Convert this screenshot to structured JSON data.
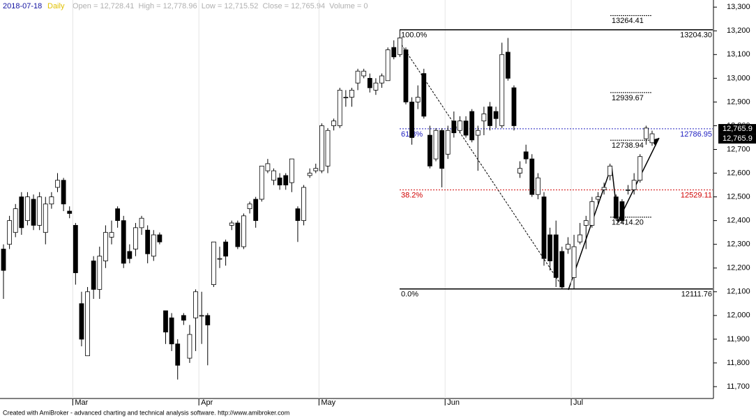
{
  "header": {
    "date": "2018-07-18",
    "interval": "Daily",
    "quote": "Open = 12,728.41  High = 12,778.96  Low = 12,715.52  Close = 12,765.94  Volume = 0"
  },
  "chart_data": {
    "type": "candlestick",
    "categories": [
      null,
      null,
      null,
      null,
      null,
      null,
      null,
      null,
      null,
      null,
      null,
      null,
      "Mar",
      null,
      null,
      null,
      null,
      null,
      null,
      null,
      null,
      null,
      null,
      null,
      null,
      null,
      null,
      null,
      null,
      null,
      null,
      null,
      null,
      "Apr",
      null,
      null,
      null,
      null,
      null,
      null,
      null,
      null,
      null,
      null,
      null,
      null,
      null,
      null,
      null,
      null,
      null,
      null,
      null,
      "May",
      null,
      null,
      null,
      null,
      null,
      null,
      null,
      null,
      null,
      null,
      null,
      null,
      null,
      null,
      null,
      null,
      null,
      null,
      null,
      null,
      "Jun",
      null,
      null,
      null,
      null,
      null,
      null,
      null,
      null,
      null,
      null,
      null,
      null,
      null,
      null,
      null,
      null,
      null,
      null,
      null,
      null,
      "Jul",
      null,
      null,
      null,
      null,
      null,
      null,
      null,
      null,
      null,
      null,
      null,
      null,
      null
    ],
    "open": [
      12280,
      12300,
      12350,
      12500,
      12400,
      12490,
      12380,
      12350,
      12470,
      12540,
      12570,
      12440,
      12380,
      12050,
      11830,
      12230,
      12110,
      12230,
      12330,
      12450,
      12400,
      12270,
      12280,
      12370,
      12360,
      12250,
      12340,
      12020,
      11990,
      11880,
      12000,
      11820,
      11990,
      12000,
      12000,
      12130,
      12240,
      12310,
      12380,
      12390,
      12290,
      12450,
      12490,
      12490,
      12610,
      12570,
      12580,
      12590,
      12560,
      12450,
      12400,
      12590,
      12610,
      12610,
      12630,
      12800,
      12800,
      12920,
      12920,
      12980,
      13010,
      13000,
      12950,
      12980,
      12990,
      13130,
      13100,
      13120,
      12900,
      12900,
      13020,
      12760,
      12660,
      12780,
      12680,
      12820,
      12780,
      12820,
      12860,
      12760,
      12820,
      12880,
      12860,
      12800,
      13110,
      12960,
      12600,
      12690,
      12660,
      12510,
      12500,
      12340,
      12340,
      12270,
      12280,
      12160,
      12310,
      12380,
      12380,
      12490,
      12530,
      12590,
      12500,
      12480,
      12530,
      12530,
      12570,
      12745,
      12728.41
    ],
    "high": [
      12300,
      12420,
      12470,
      12520,
      12520,
      12510,
      12520,
      12500,
      12520,
      12600,
      12580,
      12460,
      12390,
      12100,
      12120,
      12250,
      12290,
      12380,
      12400,
      12460,
      12420,
      12300,
      12390,
      12420,
      12380,
      12360,
      12350,
      12020,
      12010,
      11900,
      12010,
      11960,
      12110,
      12100,
      12010,
      12310,
      12290,
      12320,
      12400,
      12400,
      12430,
      12480,
      12500,
      12630,
      12660,
      12620,
      12600,
      12600,
      12660,
      12460,
      12550,
      12620,
      12640,
      12810,
      12790,
      12830,
      12960,
      12950,
      12960,
      13040,
      13040,
      13020,
      13000,
      13020,
      13130,
      13160,
      13204,
      13130,
      12920,
      12970,
      13040,
      12800,
      12790,
      12790,
      12800,
      12860,
      12840,
      12840,
      12870,
      12800,
      12880,
      12900,
      12880,
      13150,
      13170,
      12970,
      12650,
      12720,
      12680,
      12600,
      12520,
      12370,
      12400,
      12290,
      12330,
      12340,
      12390,
      12420,
      12500,
      12520,
      12560,
      12640,
      12510,
      12490,
      12550,
      12600,
      12680,
      12800,
      12778.96
    ],
    "low": [
      12070,
      12280,
      12330,
      12340,
      12380,
      12360,
      12360,
      12300,
      12450,
      12520,
      12440,
      12410,
      12130,
      11870,
      11830,
      12070,
      12070,
      12200,
      12300,
      12370,
      12200,
      12220,
      12250,
      12340,
      12220,
      12230,
      12300,
      11880,
      11850,
      11730,
      11960,
      11800,
      11850,
      11880,
      11790,
      12120,
      12200,
      12210,
      12360,
      12280,
      12280,
      12430,
      12370,
      12480,
      12600,
      12550,
      12530,
      12530,
      12520,
      12310,
      12380,
      12580,
      12600,
      12600,
      12600,
      12780,
      12790,
      12880,
      12880,
      12950,
      13000,
      12940,
      12930,
      12960,
      12990,
      13080,
      13090,
      12890,
      12720,
      12870,
      12830,
      12620,
      12650,
      12540,
      12660,
      12750,
      12770,
      12750,
      12730,
      12610,
      12760,
      12780,
      12790,
      12790,
      12990,
      12780,
      12580,
      12640,
      12500,
      12490,
      12210,
      12190,
      12120,
      12110,
      12260,
      12110,
      12300,
      12280,
      12370,
      12470,
      12510,
      12570,
      12400,
      12390,
      12510,
      12510,
      12560,
      12720,
      12715.52
    ],
    "close": [
      12190,
      12400,
      12450,
      12370,
      12500,
      12380,
      12500,
      12470,
      12500,
      12570,
      12470,
      12430,
      12180,
      11900,
      12100,
      12110,
      12250,
      12350,
      12350,
      12400,
      12220,
      12240,
      12370,
      12410,
      12260,
      12340,
      12310,
      11930,
      11880,
      11790,
      11980,
      11920,
      12100,
      12000,
      11960,
      12310,
      12240,
      12250,
      12390,
      12290,
      12420,
      12470,
      12400,
      12630,
      12640,
      12610,
      12550,
      12550,
      12660,
      12400,
      12540,
      12600,
      12620,
      12800,
      12780,
      12820,
      12950,
      12920,
      12950,
      13030,
      13030,
      12960,
      12980,
      13010,
      13120,
      13090,
      13170,
      12900,
      12750,
      12920,
      12840,
      12630,
      12780,
      12620,
      12780,
      12770,
      12820,
      12760,
      12740,
      12780,
      12850,
      12800,
      12830,
      13100,
      13000,
      12800,
      12620,
      12660,
      12510,
      12580,
      12240,
      12230,
      12160,
      12120,
      12300,
      12290,
      12340,
      12400,
      12480,
      12500,
      12540,
      12630,
      12410,
      12400,
      12530,
      12570,
      12670,
      12790,
      12765.94
    ],
    "ylim": [
      11650,
      13330
    ],
    "yticks": [
      {
        "value": 11700,
        "label": "11,700"
      },
      {
        "value": 11800,
        "label": "11,800"
      },
      {
        "value": 11900,
        "label": "11,900"
      },
      {
        "value": 12000,
        "label": "12,000"
      },
      {
        "value": 12100,
        "label": "12,100"
      },
      {
        "value": 12200,
        "label": "12,200"
      },
      {
        "value": 12300,
        "label": "12,300"
      },
      {
        "value": 12400,
        "label": "12,400"
      },
      {
        "value": 12500,
        "label": "12,500"
      },
      {
        "value": 12600,
        "label": "12,600"
      },
      {
        "value": 12700,
        "label": "12,700"
      },
      {
        "value": 12800,
        "label": "12,800"
      },
      {
        "value": 12900,
        "label": "12,900"
      },
      {
        "value": 13000,
        "label": "13,000"
      },
      {
        "value": 13100,
        "label": "13,100"
      },
      {
        "value": 13200,
        "label": "13,200"
      },
      {
        "value": 13300,
        "label": "13,300"
      }
    ],
    "last_price": {
      "value": 12765.94,
      "label": "12,765.9"
    },
    "fib_levels": [
      {
        "label": "100.0%",
        "value": 13204.3,
        "price_label": "13204.30",
        "color": "#000000"
      },
      {
        "label": "61.8%",
        "value": 12786.95,
        "price_label": "12786.95",
        "color": "#2020c0"
      },
      {
        "label": "38.2%",
        "value": 12529.11,
        "price_label": "12529.11",
        "color": "#d00000"
      },
      {
        "label": "0.0%",
        "value": 12111.76,
        "price_label": "12111.76",
        "color": "#000000"
      }
    ],
    "extension_levels": [
      {
        "value": 13264.41,
        "label": "13264.41"
      },
      {
        "value": 12939.67,
        "label": "12939.67"
      },
      {
        "value": 12738.94,
        "label": "12738.94"
      },
      {
        "value": 12414.2,
        "label": "12414.20"
      }
    ]
  },
  "footer": "Created with AmiBroker - advanced charting and technical analysis software. http://www.amibroker.com"
}
